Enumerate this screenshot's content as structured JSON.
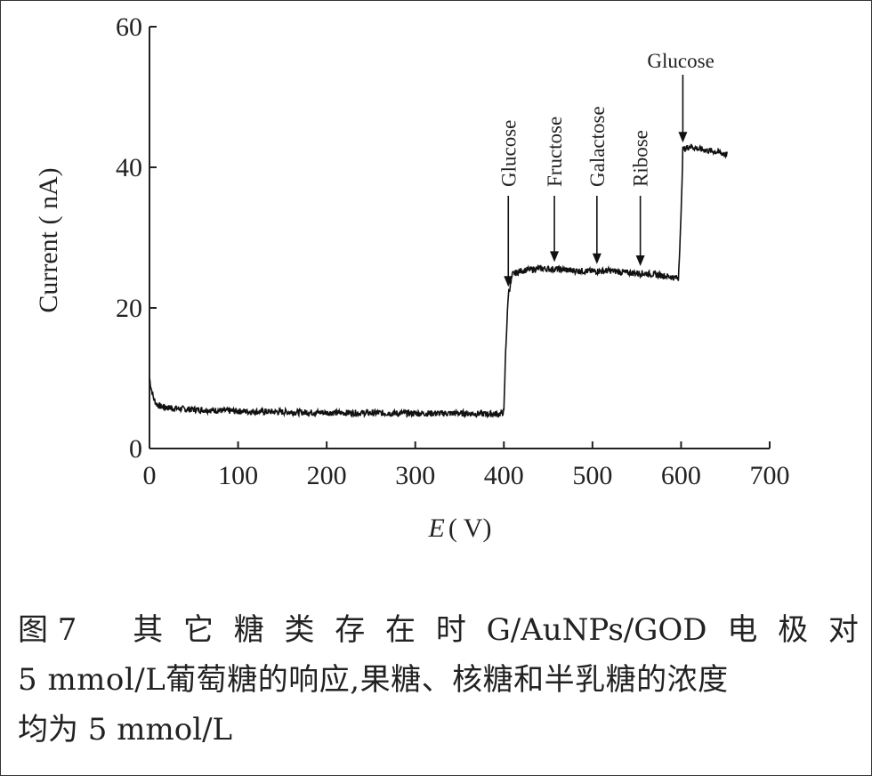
{
  "chart_data": {
    "type": "line",
    "title": "",
    "xlabel_italic": "E",
    "xlabel_rest": "( V)",
    "ylabel": "Current ( nA)",
    "xlim": [
      0,
      700
    ],
    "ylim": [
      0,
      60
    ],
    "x_ticks": [
      0,
      100,
      200,
      300,
      400,
      500,
      600,
      700
    ],
    "y_ticks": [
      0,
      20,
      40,
      60
    ],
    "grid": false,
    "series": [
      {
        "x": [
          0,
          2,
          5,
          8,
          12,
          20,
          40,
          100,
          200,
          300,
          350,
          395,
          400,
          402,
          405,
          410,
          420,
          440,
          460,
          480,
          500,
          520,
          540,
          560,
          580,
          597,
          600,
          602,
          610,
          620,
          640,
          652
        ],
        "y": [
          10,
          8.5,
          7,
          6.3,
          6,
          5.8,
          5.6,
          5.3,
          5.1,
          5.0,
          5.0,
          4.9,
          5.2,
          14,
          22,
          24.8,
          25.3,
          25.6,
          25.5,
          25.3,
          25.2,
          25.3,
          25.0,
          24.9,
          24.6,
          24.2,
          33,
          42.5,
          43.0,
          42.6,
          42.2,
          41.8
        ]
      }
    ],
    "annotations": [
      {
        "label": "Glucose",
        "x": 405
      },
      {
        "label": "Fructose",
        "x": 457
      },
      {
        "label": "Galactose",
        "x": 505
      },
      {
        "label": "Ribose",
        "x": 554
      },
      {
        "label": "Glucose",
        "x": 602
      }
    ]
  },
  "caption": {
    "fig_number": "图 7",
    "line1_words": [
      "其",
      "它",
      "糖",
      "类",
      "存",
      "在",
      "时",
      "G/AuNPs/GOD",
      "电",
      "极",
      "对"
    ],
    "line2": "5 mmol/L葡萄糖的响应,果糖、核糖和半乳糖的浓度",
    "line3": "均为 5 mmol/L"
  }
}
